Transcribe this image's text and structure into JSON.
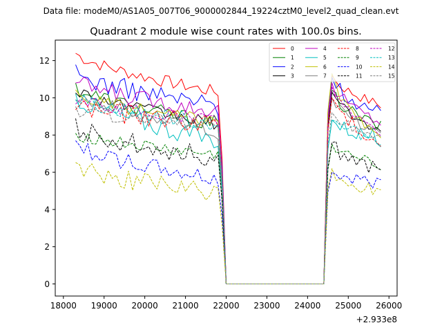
{
  "chart_data": {
    "type": "line",
    "suptitle": "Data file: modeM0/AS1A05_007T06_9000002844_19224cztM0_level2_quad_clean.evt",
    "title": "Quadrant 2 module wise count rates with 100.0s bins.",
    "xlabel": "",
    "ylabel": "",
    "x_offset_label": "+2.933e8",
    "xlim": [
      17800,
      26200
    ],
    "ylim": [
      -0.65,
      13.1
    ],
    "x_ticks": [
      18000,
      19000,
      20000,
      21000,
      22000,
      23000,
      24000,
      25000,
      26000
    ],
    "y_ticks": [
      0,
      2,
      4,
      6,
      8,
      10,
      12
    ],
    "x_start": 18300,
    "x_step": 100,
    "gap": {
      "start": 22000,
      "end": 24400
    },
    "legend": {
      "position": "top-right",
      "ncol": 4
    },
    "series": [
      {
        "name": "0",
        "color": "#ff0000",
        "dash": "solid",
        "pre_start": 12.4,
        "pre_end": 10.3,
        "post_peak": 11.2,
        "post_end": 9.6
      },
      {
        "name": "1",
        "color": "#008000",
        "dash": "solid",
        "pre_start": 10.6,
        "pre_end": 8.6,
        "post_peak": 10.4,
        "post_end": 8.4
      },
      {
        "name": "2",
        "color": "#0000ff",
        "dash": "solid",
        "pre_start": 11.3,
        "pre_end": 9.6,
        "post_peak": 11.1,
        "post_end": 9.1
      },
      {
        "name": "3",
        "color": "#000000",
        "dash": "solid",
        "pre_start": 10.5,
        "pre_end": 8.6,
        "post_peak": 10.3,
        "post_end": 8.2
      },
      {
        "name": "4",
        "color": "#bf00bf",
        "dash": "solid",
        "pre_start": 10.9,
        "pre_end": 9.3,
        "post_peak": 10.8,
        "post_end": 8.7
      },
      {
        "name": "5",
        "color": "#00bfbf",
        "dash": "solid",
        "pre_start": 10.1,
        "pre_end": 7.7,
        "post_peak": 8.8,
        "post_end": 7.8
      },
      {
        "name": "6",
        "color": "#bfbf00",
        "dash": "solid",
        "pre_start": 10.2,
        "pre_end": 8.7,
        "post_peak": 11.3,
        "post_end": 7.7
      },
      {
        "name": "7",
        "color": "#808080",
        "dash": "solid",
        "pre_start": 10.3,
        "pre_end": 8.2,
        "post_peak": 10.0,
        "post_end": 8.1
      },
      {
        "name": "8",
        "color": "#ff0000",
        "dash": "dashed",
        "pre_start": 9.6,
        "pre_end": 8.6,
        "post_peak": 10.0,
        "post_end": 7.6
      },
      {
        "name": "9",
        "color": "#008000",
        "dash": "dashed",
        "pre_start": 8.1,
        "pre_end": 6.9,
        "post_peak": 7.5,
        "post_end": 6.4
      },
      {
        "name": "10",
        "color": "#0000ff",
        "dash": "dashed",
        "pre_start": 7.5,
        "pre_end": 5.6,
        "post_peak": 6.0,
        "post_end": 5.4
      },
      {
        "name": "11",
        "color": "#000000",
        "dash": "dashed",
        "pre_start": 8.4,
        "pre_end": 6.8,
        "post_peak": 7.6,
        "post_end": 6.1
      },
      {
        "name": "12",
        "color": "#bf00bf",
        "dash": "dashed",
        "pre_start": 9.9,
        "pre_end": 8.8,
        "post_peak": 10.6,
        "post_end": 8.1
      },
      {
        "name": "13",
        "color": "#00bfbf",
        "dash": "dashed",
        "pre_start": 10.0,
        "pre_end": 8.6,
        "post_peak": 8.8,
        "post_end": 7.8
      },
      {
        "name": "14",
        "color": "#bfbf00",
        "dash": "dashed",
        "pre_start": 6.4,
        "pre_end": 4.8,
        "post_peak": 6.2,
        "post_end": 4.8
      },
      {
        "name": "15",
        "color": "#808080",
        "dash": "dashed",
        "pre_start": 9.3,
        "pre_end": 8.6,
        "post_peak": 9.2,
        "post_end": 7.9
      }
    ]
  }
}
